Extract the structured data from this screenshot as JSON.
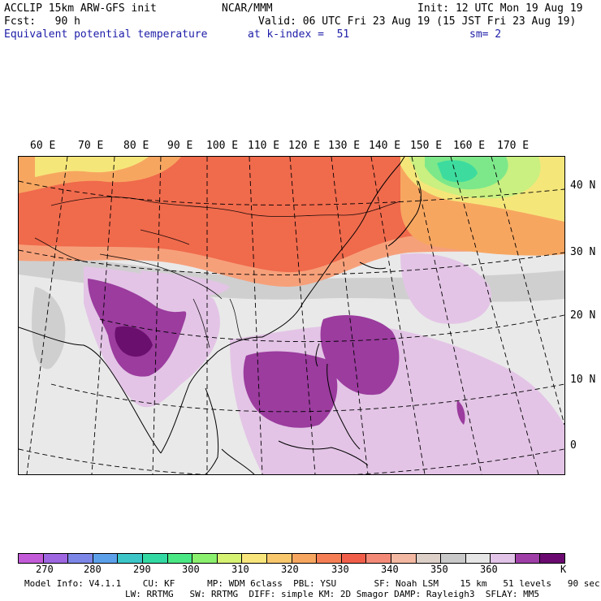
{
  "header": {
    "left1": "ACCLIP 15km ARW-GFS init",
    "center1": "NCAR/MMM",
    "right1": "Init: 12 UTC Mon 19 Aug 19",
    "left2": "Fcst:   90 h",
    "right2": "Valid: 06 UTC Fri 23 Aug 19 (15 JST Fri 23 Aug 19)",
    "field_name": "Equivalent potential temperature",
    "level": "at k-index =  51",
    "smoothing": "sm= 2"
  },
  "map": {
    "lon_labels": [
      "60 E",
      "70 E",
      "80 E",
      "90 E",
      "100 E",
      "110 E",
      "120 E",
      "130 E",
      "140 E",
      "150 E",
      "160 E",
      "170 E"
    ],
    "lat_labels": [
      "40 N",
      "30 N",
      "20 N",
      "10 N",
      "0"
    ],
    "field_colors": {
      "background": "#e9e9e9",
      "gray": "#cfcfcf",
      "light_purple": "#e3c4e6",
      "purple": "#9b3c9e",
      "dark_purple": "#6a0f6e",
      "salmon": "#f6a07a",
      "orange_red": "#f06a4c",
      "orange": "#f7a660",
      "yellow": "#f5e67a",
      "light_green": "#c9f080",
      "green": "#7de88a",
      "teal": "#3ddc9e"
    }
  },
  "colorbar": {
    "colors": [
      "#c35ad8",
      "#9e66e0",
      "#7b86e6",
      "#5ca0ea",
      "#3cc6c8",
      "#33d9a2",
      "#4ae884",
      "#8af06e",
      "#d6f272",
      "#f8e67c",
      "#f9c86c",
      "#f7a660",
      "#f67e54",
      "#f05e4a",
      "#f38a78",
      "#f3b8a2",
      "#dcd0c8",
      "#c9c9c9",
      "#e6e6e6",
      "#e2c4e8",
      "#9e3ea6",
      "#6a0a70"
    ],
    "labels": [
      "270",
      "280",
      "290",
      "300",
      "310",
      "320",
      "330",
      "340",
      "350",
      "360",
      "K"
    ]
  },
  "footer": {
    "line1": "Model Info: V4.1.1    CU: KF      MP: WDM 6class  PBL: YSU       SF: Noah LSM    15 km   51 levels   90 sec",
    "line2": "LW: RRTMG   SW: RRTMG  DIFF: simple KM: 2D Smagor DAMP: Rayleigh3  SFLAY: MM5"
  }
}
